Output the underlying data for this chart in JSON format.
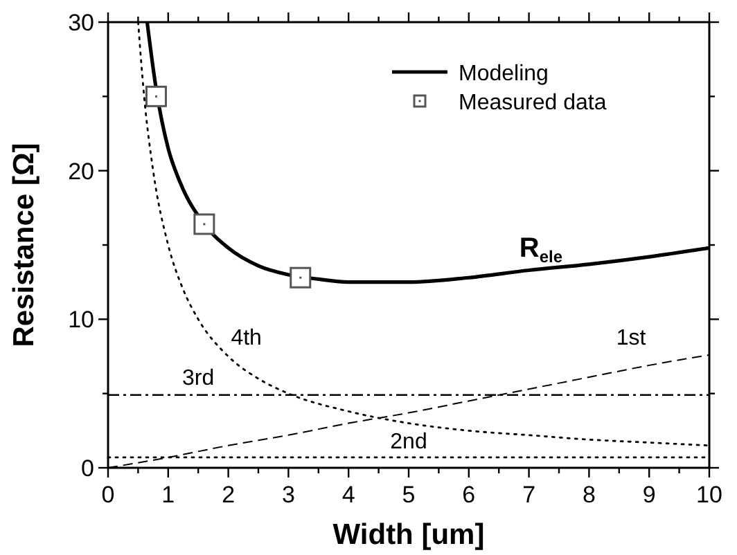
{
  "chart_data": {
    "type": "line",
    "xlabel": "Width [um]",
    "ylabel": "Resistance [Ω]",
    "xlim": [
      0,
      10
    ],
    "ylim": [
      0,
      30
    ],
    "xticks": [
      0,
      {
        "value": 0.5,
        "label": null
      },
      1,
      {
        "value": 1.5,
        "label": null
      },
      2,
      {
        "value": 2.5,
        "label": null
      },
      3,
      {
        "value": 3.5,
        "label": null
      },
      4,
      {
        "value": 4.5,
        "label": null
      },
      5,
      {
        "value": 5.5,
        "label": null
      },
      6,
      {
        "value": 6.5,
        "label": null
      },
      7,
      {
        "value": 7.5,
        "label": null
      },
      8,
      {
        "value": 8.5,
        "label": null
      },
      9,
      {
        "value": 9.5,
        "label": null
      },
      10
    ],
    "yticks": [
      0,
      {
        "value": 5,
        "label": null
      },
      10,
      {
        "value": 15,
        "label": null
      },
      20,
      {
        "value": 25,
        "label": null
      },
      30
    ],
    "grid": false,
    "legend": "top right",
    "series": [
      {
        "name": "Modeling",
        "color": "#000000",
        "line_style": "solid",
        "x": [
          0.65,
          0.8,
          1,
          1.2,
          1.6,
          2,
          2.5,
          3,
          3.5,
          4,
          4.5,
          5,
          6,
          7,
          8,
          9,
          10
        ],
        "values": [
          30,
          25.5,
          21.5,
          19.2,
          16.4,
          14.8,
          13.6,
          13,
          12.7,
          12.5,
          12.5,
          12.5,
          12.8,
          13.3,
          13.7,
          14.2,
          14.8
        ]
      },
      {
        "name": "Measured data",
        "type": "scatter",
        "color": "#555555",
        "marker": "square",
        "x": [
          0.8,
          1.6,
          3.2
        ],
        "values": [
          25,
          16.4,
          12.8
        ]
      },
      {
        "name": "1st",
        "color": "#000000",
        "line_style": "dashed",
        "x": [
          0,
          1,
          2,
          3,
          4,
          5,
          6,
          7,
          8,
          9,
          10
        ],
        "values": [
          0,
          0.7,
          1.5,
          2.2,
          3,
          3.7,
          4.5,
          5.3,
          6.1,
          6.9,
          7.6
        ]
      },
      {
        "name": "2nd",
        "color": "#000000",
        "line_style": "dotted",
        "x": [
          0,
          10
        ],
        "values": [
          0.7,
          0.7
        ]
      },
      {
        "name": "3rd",
        "color": "#000000",
        "line_style": "dashdot",
        "x": [
          0,
          10
        ],
        "values": [
          4.9,
          4.9
        ]
      },
      {
        "name": "4th",
        "color": "#000000",
        "line_style": "dotted",
        "x": [
          0.5,
          0.6,
          0.75,
          1,
          1.25,
          1.5,
          2,
          2.5,
          3,
          4,
          5,
          6,
          7,
          8,
          9,
          10
        ],
        "values": [
          30,
          25,
          20,
          15,
          12,
          10,
          7.5,
          6,
          5,
          3.8,
          3,
          2.5,
          2.2,
          1.9,
          1.7,
          1.5
        ]
      }
    ],
    "annotations": [
      "R$_{ele}$"
    ]
  }
}
